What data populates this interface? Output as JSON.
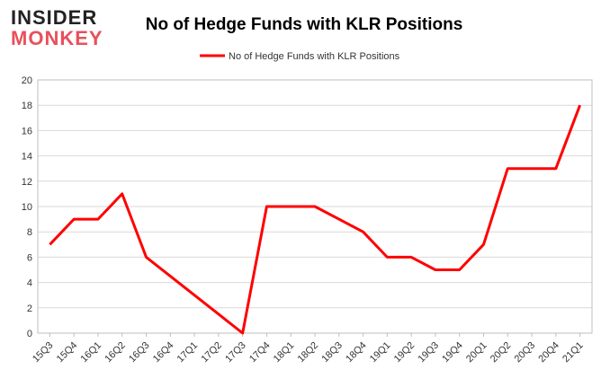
{
  "logo": {
    "line1": "INSIDER",
    "line2": "MONKEY"
  },
  "chart_data": {
    "type": "line",
    "title": "No of Hedge Funds with KLR Positions",
    "categories": [
      "15Q3",
      "15Q4",
      "16Q1",
      "16Q2",
      "16Q3",
      "16Q4",
      "17Q1",
      "17Q2",
      "17Q3",
      "17Q4",
      "18Q1",
      "18Q2",
      "18Q3",
      "18Q4",
      "19Q1",
      "19Q2",
      "19Q3",
      "19Q4",
      "20Q1",
      "20Q2",
      "20Q3",
      "20Q4",
      "21Q1"
    ],
    "series": [
      {
        "name": "No of Hedge Funds with KLR Positions",
        "color": "#ff0000",
        "values": [
          7,
          9,
          9,
          11,
          6,
          4.5,
          3,
          1.5,
          0,
          10,
          10,
          10,
          9,
          8,
          6,
          6,
          5,
          5,
          7,
          13,
          13,
          13,
          18
        ]
      }
    ],
    "ylim": [
      0,
      20
    ],
    "yticks": [
      0,
      2,
      4,
      6,
      8,
      10,
      12,
      14,
      16,
      18,
      20
    ],
    "grid": true,
    "legend": "top"
  }
}
